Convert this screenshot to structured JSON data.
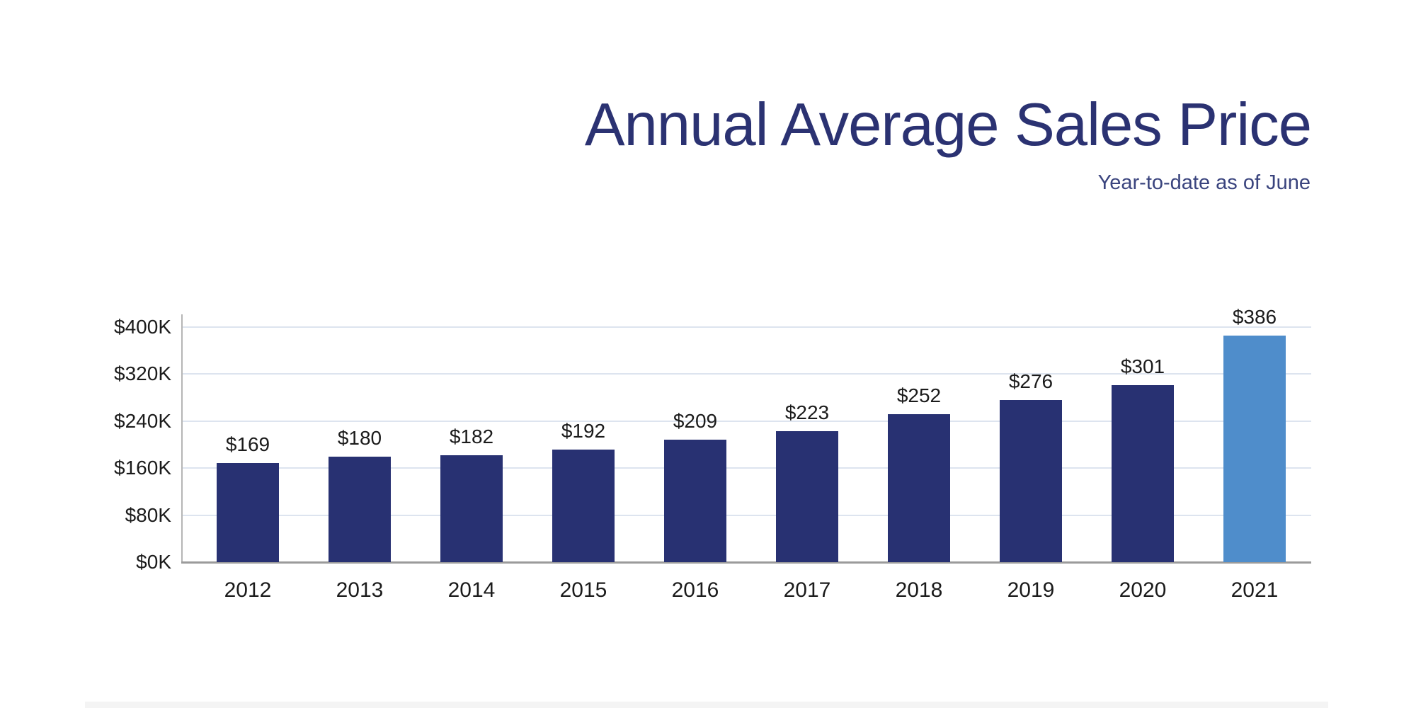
{
  "header": {
    "title": "Annual Average Sales Price",
    "subtitle": "Year-to-date as of June"
  },
  "colors": {
    "title_navy": "#2B3272",
    "subtitle_navy": "#3A447E",
    "bar_navy": "#283172",
    "bar_highlight_blue": "#4F8DCB",
    "gridline": "#DDE4EF",
    "x_axis_gray": "#9B9B9B",
    "y_axis_gray": "#B5B5B5",
    "label_black": "#1B1B1B",
    "footer_strip_gray": "#F4F4F4"
  },
  "chart_data": {
    "type": "bar",
    "title": "Annual Average Sales Price",
    "subtitle": "Year-to-date as of June",
    "categories": [
      "2012",
      "2013",
      "2014",
      "2015",
      "2016",
      "2017",
      "2018",
      "2019",
      "2020",
      "2021"
    ],
    "values": [
      169,
      180,
      182,
      192,
      209,
      223,
      252,
      276,
      301,
      386
    ],
    "value_labels": [
      "$169",
      "$180",
      "$182",
      "$192",
      "$209",
      "$223",
      "$252",
      "$276",
      "$301",
      "$386"
    ],
    "highlight_index": 9,
    "xlabel": "",
    "ylabel": "",
    "ylim": [
      0,
      400
    ],
    "y_ticks": [
      0,
      80,
      160,
      240,
      320,
      400
    ],
    "y_tick_labels": [
      "$0K",
      "$80K",
      "$160K",
      "$240K",
      "$320K",
      "$400K"
    ],
    "grid": true,
    "legend": false
  }
}
